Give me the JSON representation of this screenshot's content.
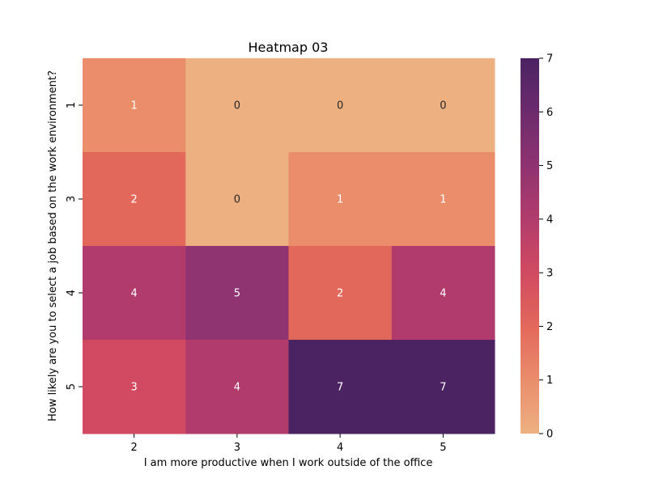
{
  "chart_data": {
    "type": "heatmap",
    "title": "Heatmap 03",
    "xlabel": "I am more productive when I work outside of the office",
    "ylabel": "How likely are you to select a job based on the work environment?",
    "x_categories": [
      "2",
      "3",
      "4",
      "5"
    ],
    "y_categories": [
      "1",
      "3",
      "4",
      "5"
    ],
    "values": [
      [
        1,
        0,
        0,
        0
      ],
      [
        2,
        0,
        1,
        1
      ],
      [
        4,
        5,
        2,
        4
      ],
      [
        3,
        4,
        7,
        7
      ]
    ],
    "vmin": 0,
    "vmax": 7,
    "colorbar_ticks": [
      "0",
      "1",
      "2",
      "3",
      "4",
      "5",
      "6",
      "7"
    ],
    "colormap": "flare",
    "colors": {
      "v0": "#EDB081",
      "v1": "#E98D6B",
      "v2": "#E3685C",
      "v3": "#D14A61",
      "v4": "#B13C6C",
      "v5": "#8F3371",
      "v6": "#6C2B6D",
      "v7": "#4B2362",
      "label_dark": "#262626",
      "label_light": "#ffffff"
    }
  }
}
